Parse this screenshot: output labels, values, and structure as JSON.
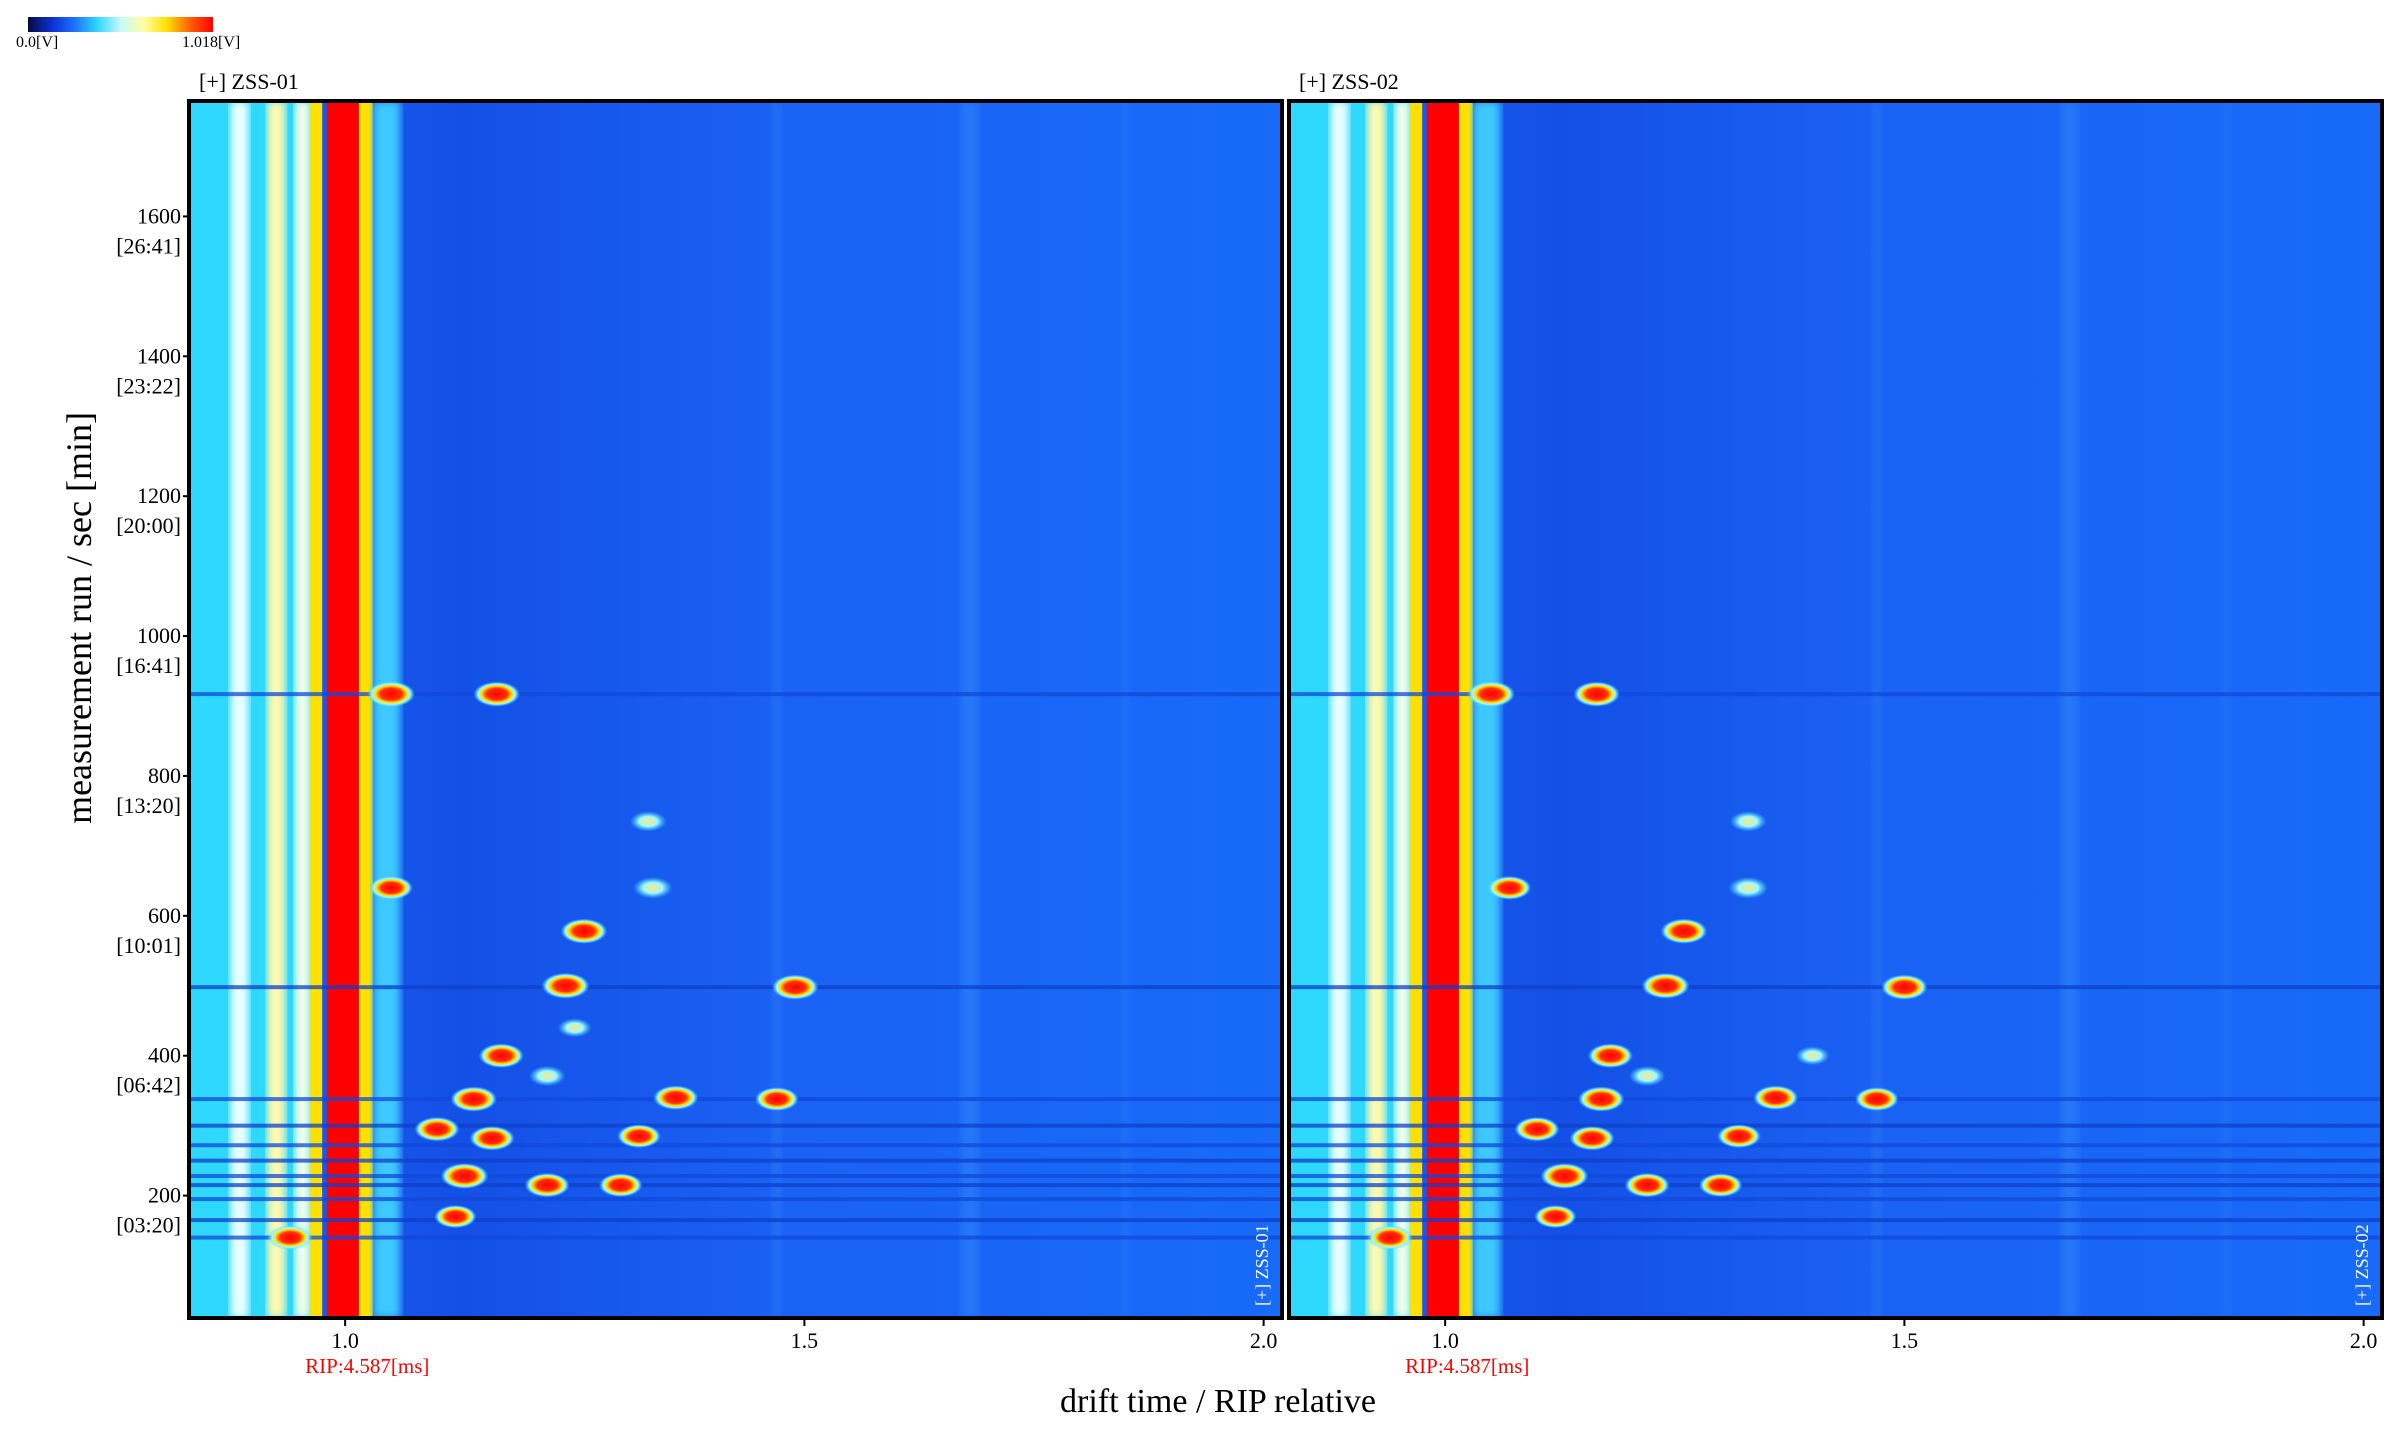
{
  "colorbar": {
    "min_label": "0.0[V]",
    "max_label": "1.018[V]",
    "stops": [
      "#0a0a40",
      "#0a2fd0",
      "#1b72ff",
      "#2ed8ff",
      "#c8f8ff",
      "#ffffa0",
      "#ffe000",
      "#ff6000",
      "#ff0000"
    ]
  },
  "chart_data": [
    {
      "type": "heatmap",
      "title": "[+] ZSS-01",
      "side_label": "[+] ZSS-01",
      "rip_label": "RIP:4.587[ms]",
      "xlabel": "drift time / RIP relative",
      "ylabel": "measurement run / sec [min]",
      "xlim": [
        0.83,
        2.02
      ],
      "ylim": [
        25,
        1765
      ],
      "x_ticks": [
        {
          "value": 1.0,
          "label": "1.0"
        },
        {
          "value": 1.5,
          "label": "1.5"
        },
        {
          "value": 2.0,
          "label": "2.0"
        }
      ],
      "y_ticks": [
        {
          "value": 200,
          "label": "200",
          "sub": "[03:20]"
        },
        {
          "value": 400,
          "label": "400",
          "sub": "[06:42]"
        },
        {
          "value": 600,
          "label": "600",
          "sub": "[10:01]"
        },
        {
          "value": 800,
          "label": "800",
          "sub": "[13:20]"
        },
        {
          "value": 1000,
          "label": "1000",
          "sub": "[16:41]"
        },
        {
          "value": 1200,
          "label": "1200",
          "sub": "[20:00]"
        },
        {
          "value": 1400,
          "label": "1400",
          "sub": "[23:22]"
        },
        {
          "value": 1600,
          "label": "1600",
          "sub": "[26:41]"
        }
      ],
      "rip_drift": 1.0,
      "peaks": [
        {
          "x": 1.05,
          "y": 917,
          "intensity": 1.0
        },
        {
          "x": 1.165,
          "y": 917,
          "intensity": 0.95
        },
        {
          "x": 1.05,
          "y": 640,
          "intensity": 0.85
        },
        {
          "x": 1.26,
          "y": 578,
          "intensity": 0.95
        },
        {
          "x": 1.24,
          "y": 500,
          "intensity": 1.0
        },
        {
          "x": 1.49,
          "y": 498,
          "intensity": 0.95
        },
        {
          "x": 1.335,
          "y": 640,
          "intensity": 0.7
        },
        {
          "x": 1.33,
          "y": 735,
          "intensity": 0.6
        },
        {
          "x": 1.17,
          "y": 400,
          "intensity": 0.9
        },
        {
          "x": 1.14,
          "y": 338,
          "intensity": 0.95
        },
        {
          "x": 1.36,
          "y": 340,
          "intensity": 0.9
        },
        {
          "x": 1.47,
          "y": 338,
          "intensity": 0.85
        },
        {
          "x": 1.1,
          "y": 295,
          "intensity": 0.9
        },
        {
          "x": 1.16,
          "y": 282,
          "intensity": 0.9
        },
        {
          "x": 1.32,
          "y": 285,
          "intensity": 0.85
        },
        {
          "x": 1.13,
          "y": 228,
          "intensity": 1.0
        },
        {
          "x": 1.22,
          "y": 215,
          "intensity": 0.9
        },
        {
          "x": 1.3,
          "y": 215,
          "intensity": 0.85
        },
        {
          "x": 1.12,
          "y": 170,
          "intensity": 0.8
        },
        {
          "x": 0.94,
          "y": 140,
          "intensity": 0.9
        },
        {
          "x": 1.22,
          "y": 371,
          "intensity": 0.6
        },
        {
          "x": 1.25,
          "y": 440,
          "intensity": 0.5
        }
      ]
    },
    {
      "type": "heatmap",
      "title": "[+] ZSS-02",
      "side_label": "[+] ZSS-02",
      "rip_label": "RIP:4.587[ms]",
      "xlabel": "drift time / RIP relative",
      "ylabel": "measurement run / sec [min]",
      "xlim": [
        0.83,
        2.02
      ],
      "ylim": [
        25,
        1765
      ],
      "x_ticks": [
        {
          "value": 1.0,
          "label": "1.0"
        },
        {
          "value": 1.5,
          "label": "1.5"
        },
        {
          "value": 2.0,
          "label": "2.0"
        }
      ],
      "rip_drift": 1.0,
      "peaks": [
        {
          "x": 1.05,
          "y": 917,
          "intensity": 1.0
        },
        {
          "x": 1.165,
          "y": 917,
          "intensity": 0.95
        },
        {
          "x": 1.07,
          "y": 640,
          "intensity": 0.85
        },
        {
          "x": 1.26,
          "y": 578,
          "intensity": 0.95
        },
        {
          "x": 1.24,
          "y": 500,
          "intensity": 1.0
        },
        {
          "x": 1.5,
          "y": 498,
          "intensity": 0.95
        },
        {
          "x": 1.33,
          "y": 640,
          "intensity": 0.7
        },
        {
          "x": 1.33,
          "y": 735,
          "intensity": 0.6
        },
        {
          "x": 1.18,
          "y": 400,
          "intensity": 0.9
        },
        {
          "x": 1.17,
          "y": 338,
          "intensity": 0.95
        },
        {
          "x": 1.36,
          "y": 340,
          "intensity": 0.9
        },
        {
          "x": 1.47,
          "y": 338,
          "intensity": 0.85
        },
        {
          "x": 1.1,
          "y": 295,
          "intensity": 0.9
        },
        {
          "x": 1.16,
          "y": 282,
          "intensity": 0.9
        },
        {
          "x": 1.32,
          "y": 285,
          "intensity": 0.85
        },
        {
          "x": 1.13,
          "y": 228,
          "intensity": 1.0
        },
        {
          "x": 1.22,
          "y": 215,
          "intensity": 0.9
        },
        {
          "x": 1.3,
          "y": 215,
          "intensity": 0.85
        },
        {
          "x": 1.12,
          "y": 170,
          "intensity": 0.8
        },
        {
          "x": 0.94,
          "y": 140,
          "intensity": 0.9
        },
        {
          "x": 1.22,
          "y": 371,
          "intensity": 0.6
        },
        {
          "x": 1.4,
          "y": 400,
          "intensity": 0.5
        }
      ]
    }
  ]
}
